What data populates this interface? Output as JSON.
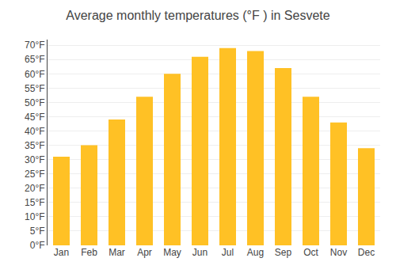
{
  "chart_data": {
    "type": "bar",
    "title": "Average monthly temperatures (°F ) in Sesvete",
    "categories": [
      "Jan",
      "Feb",
      "Mar",
      "Apr",
      "May",
      "Jun",
      "Jul",
      "Aug",
      "Sep",
      "Oct",
      "Nov",
      "Dec"
    ],
    "values": [
      31,
      35,
      44,
      52,
      60,
      66,
      69,
      68,
      62,
      52,
      43,
      34
    ],
    "color": "#FFC125",
    "ylim": [
      0,
      72
    ],
    "yticks": [
      {
        "value": 0,
        "label": "0°F"
      },
      {
        "value": 5,
        "label": "5°F"
      },
      {
        "value": 10,
        "label": "10°F"
      },
      {
        "value": 15,
        "label": "15°F"
      },
      {
        "value": 20,
        "label": "20°F"
      },
      {
        "value": 25,
        "label": "25°F"
      },
      {
        "value": 30,
        "label": "30°F"
      },
      {
        "value": 35,
        "label": "35°F"
      },
      {
        "value": 40,
        "label": "40°F"
      },
      {
        "value": 45,
        "label": "45°F"
      },
      {
        "value": 50,
        "label": "50°F"
      },
      {
        "value": 55,
        "label": "55°F"
      },
      {
        "value": 60,
        "label": "60°F"
      },
      {
        "value": 65,
        "label": "65°F"
      },
      {
        "value": 70,
        "label": "70°F"
      }
    ],
    "grid": true
  }
}
